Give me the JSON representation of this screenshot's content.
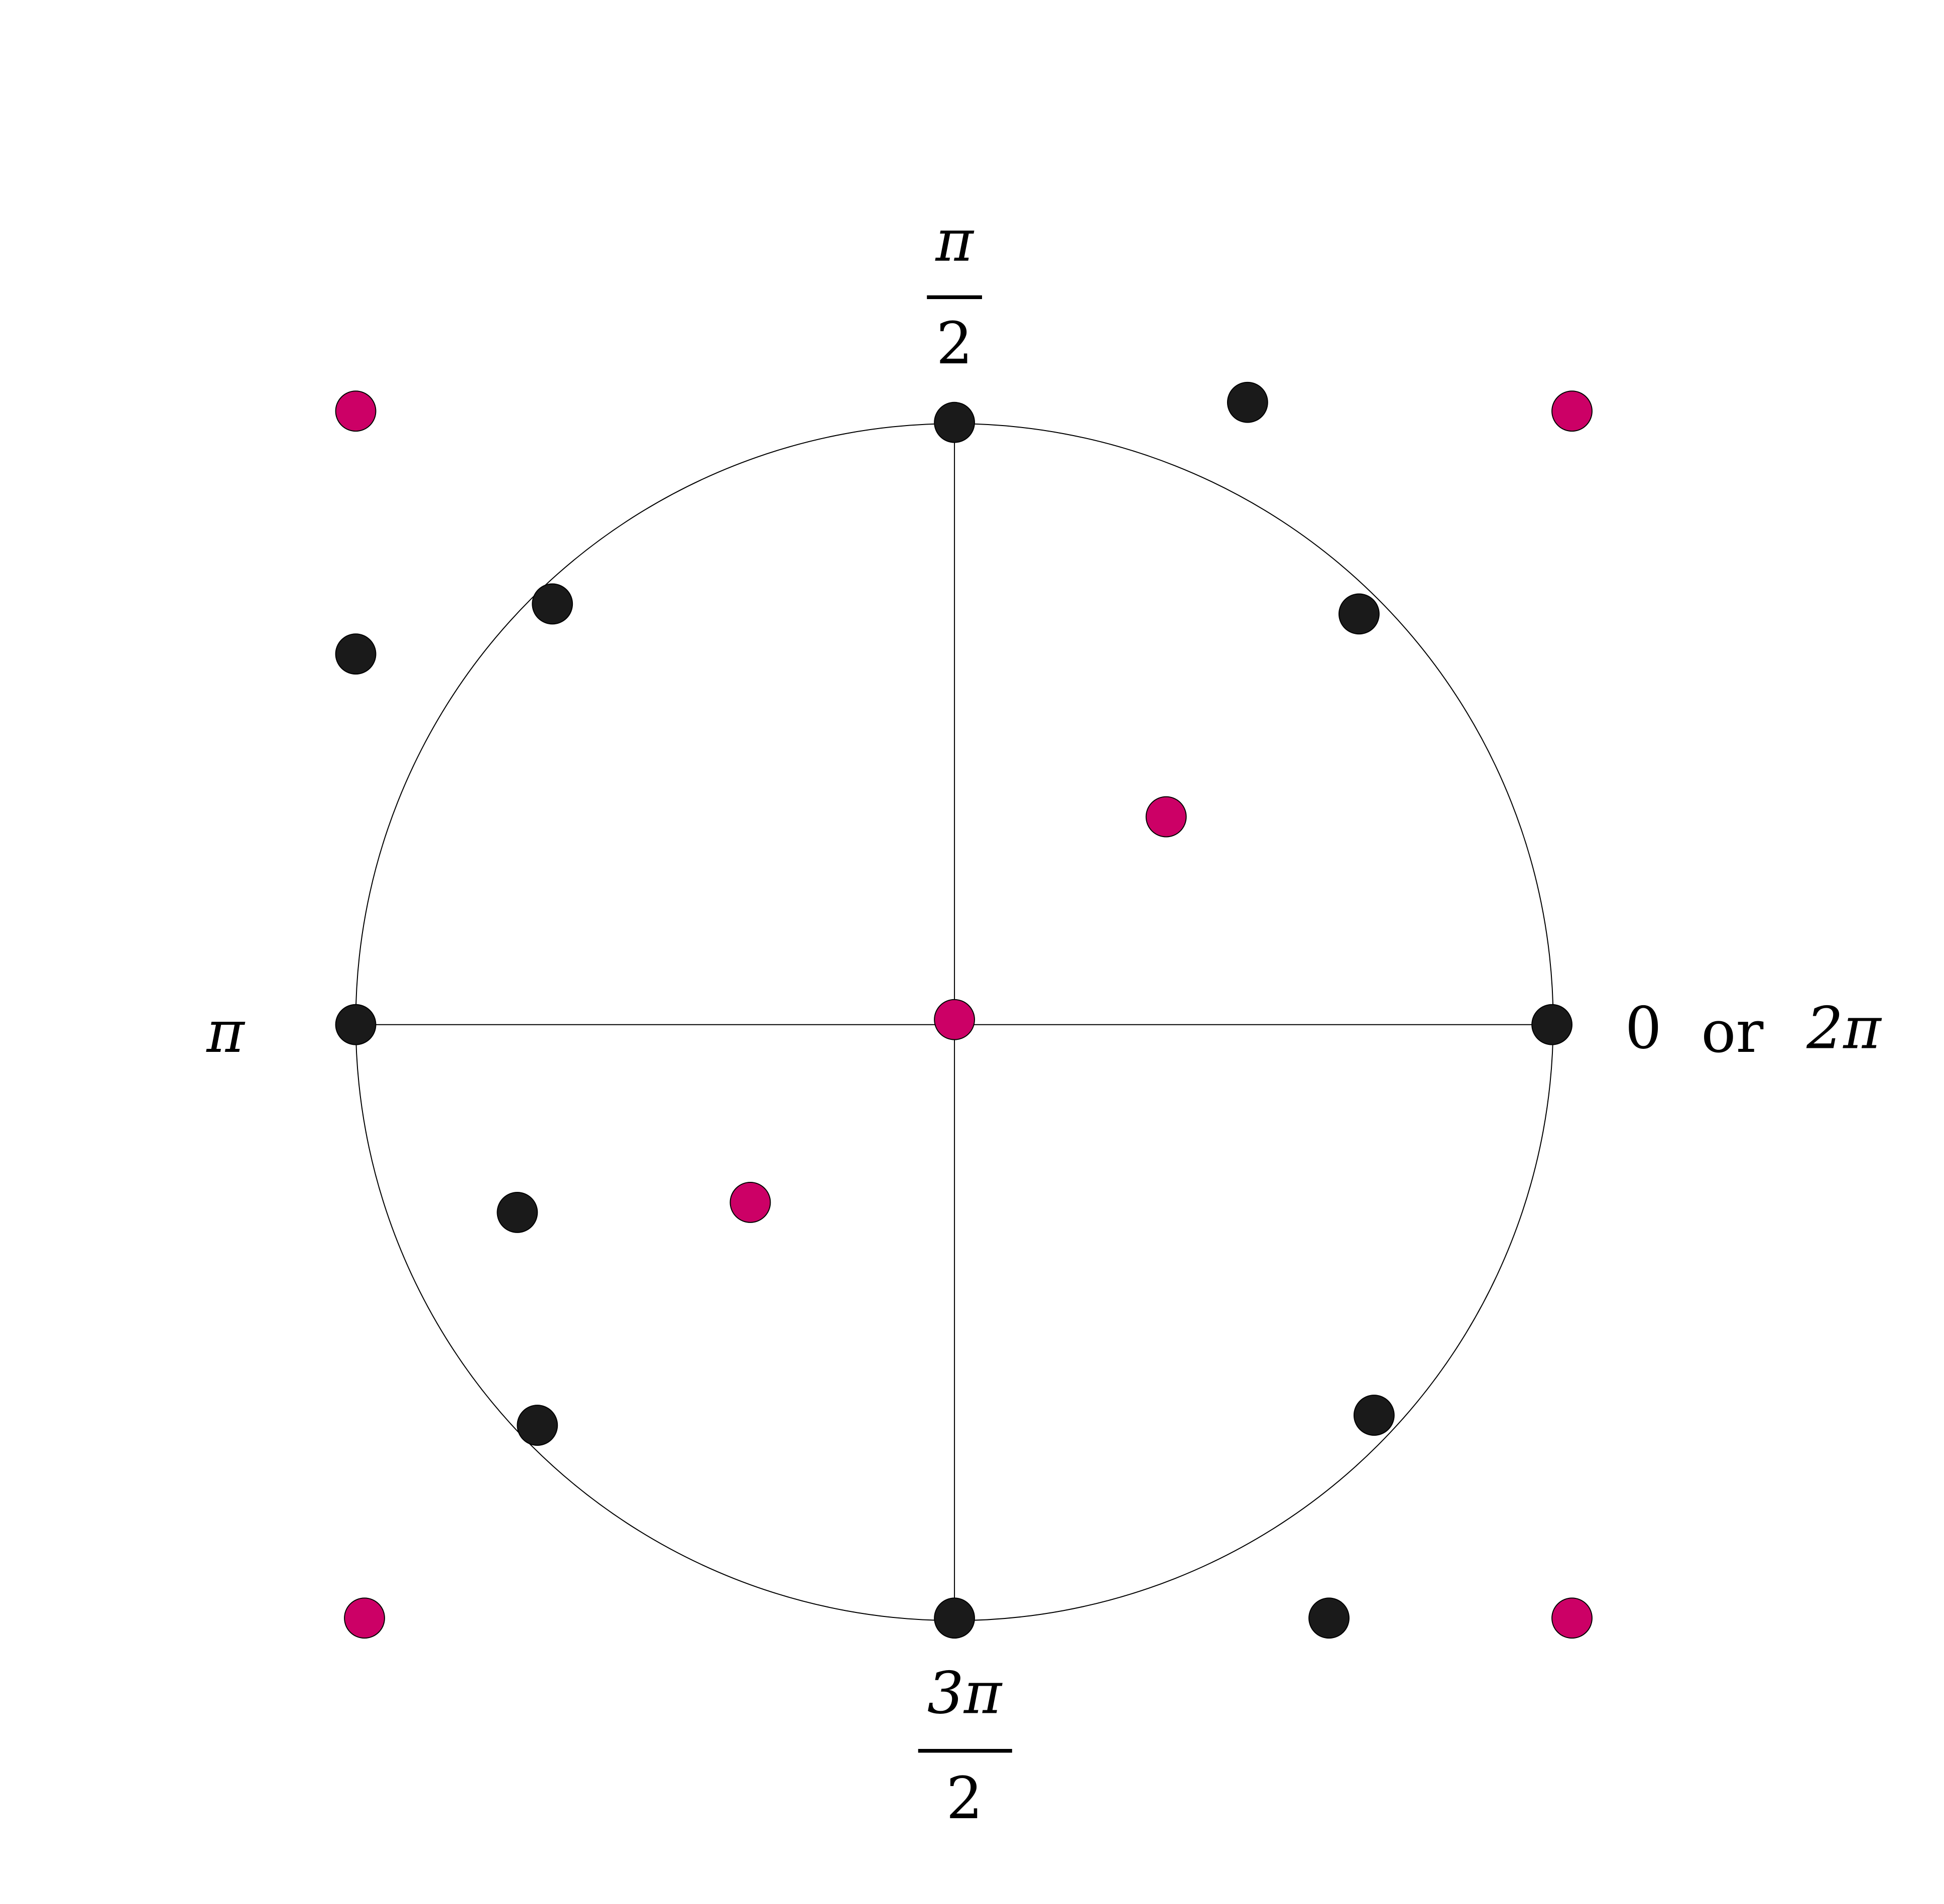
{
  "labels": {
    "top": {
      "numerator": "π",
      "denominator": "2"
    },
    "left": "π",
    "right": {
      "zero": "0",
      "word": "or",
      "two_pi": "2π"
    },
    "bottom": {
      "numerator": "3π",
      "denominator": "2"
    }
  }
}
